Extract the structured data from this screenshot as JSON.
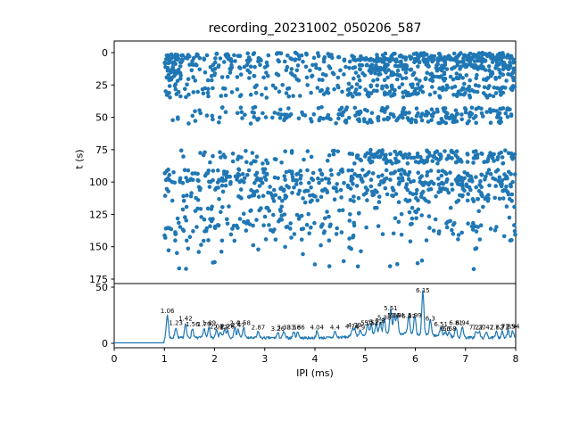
{
  "title": "recording_20231002_050206_587",
  "top_axes": {
    "ylabel": "t (s)",
    "yticks": [
      "0",
      "25",
      "50",
      "75",
      "100",
      "125",
      "150",
      "175"
    ],
    "ytick_values": [
      0,
      25,
      50,
      75,
      100,
      125,
      150,
      175
    ]
  },
  "bottom_axes": {
    "xlabel": "IPI (ms)",
    "xticks": [
      "0",
      "1",
      "2",
      "3",
      "4",
      "5",
      "6",
      "7",
      "8"
    ],
    "xtick_values": [
      0,
      1,
      2,
      3,
      4,
      5,
      6,
      7,
      8
    ],
    "yticks": [
      "0",
      "50"
    ],
    "ytick_values": [
      0,
      50
    ]
  },
  "colors": {
    "series": "#1f77b4",
    "spine": "#000000",
    "text": "#000000"
  },
  "chart_data": [
    {
      "type": "scatter",
      "title": "recording_20231002_050206_587",
      "ylabel": "t (s)",
      "xlim": [
        0,
        8
      ],
      "ylim": [
        183,
        -9
      ],
      "ylim_inverted": true,
      "marker_color": "#1f77b4",
      "marker_radius": 2.3,
      "seed": 42,
      "bands": [
        [
          0,
          8,
          1.0,
          4.8,
          90
        ],
        [
          0,
          8,
          4.8,
          8.0,
          200
        ],
        [
          0,
          22,
          1.0,
          1.35,
          55
        ],
        [
          9,
          14,
          1.35,
          4.8,
          45
        ],
        [
          9,
          14,
          4.8,
          8.0,
          110
        ],
        [
          15,
          22,
          1.35,
          4.8,
          40
        ],
        [
          15,
          22,
          4.8,
          8.0,
          85
        ],
        [
          24,
          35,
          1.0,
          4.8,
          70
        ],
        [
          24,
          35,
          4.8,
          8.0,
          120
        ],
        [
          42,
          55,
          1.0,
          4.8,
          80
        ],
        [
          42,
          55,
          4.8,
          8.0,
          150
        ],
        [
          75,
          86,
          1.0,
          4.8,
          45
        ],
        [
          75,
          86,
          4.8,
          8.0,
          140
        ],
        [
          90,
          101,
          1.0,
          8.0,
          230
        ],
        [
          101,
          116,
          1.0,
          4.8,
          95
        ],
        [
          101,
          116,
          4.8,
          8.0,
          120
        ],
        [
          118,
          146,
          1.0,
          4.8,
          130
        ],
        [
          118,
          146,
          4.8,
          8.0,
          65
        ],
        [
          148,
          158,
          1.0,
          8.0,
          16
        ],
        [
          160,
          168,
          1.2,
          7.5,
          13
        ]
      ]
    },
    {
      "type": "line",
      "xlabel": "IPI (ms)",
      "xlim": [
        0,
        8
      ],
      "ylim": [
        0,
        52
      ],
      "color": "#1f77b4",
      "seed": 7,
      "baseline": {
        "flat_until_x": 1.0,
        "flat_value": 0.4,
        "level": 3.5,
        "noise_amp": 2.5,
        "bump_center": 5.7,
        "bump_sigma": 0.6,
        "bump_amp": 4.0
      },
      "peaks": [
        {
          "x": 1.06,
          "y": 24,
          "label": "1.06"
        },
        {
          "x": 1.23,
          "y": 13,
          "label": "1.23"
        },
        {
          "x": 1.42,
          "y": 17,
          "label": "1.42"
        },
        {
          "x": 1.56,
          "y": 12,
          "label": "1.56"
        },
        {
          "x": 1.79,
          "y": 12,
          "label": "1.79"
        },
        {
          "x": 1.89,
          "y": 13,
          "label": "1.89"
        },
        {
          "x": 2.04,
          "y": 10,
          "label": "2.04"
        },
        {
          "x": 2.12,
          "y": 9,
          "label": "2.12"
        },
        {
          "x": 2.2,
          "y": 10,
          "label": "2.2"
        },
        {
          "x": 2.26,
          "y": 10,
          "label": "2.26"
        },
        {
          "x": 2.4,
          "y": 13,
          "label": "2.4"
        },
        {
          "x": 2.47,
          "y": 11,
          "label": "2.47"
        },
        {
          "x": 2.58,
          "y": 13,
          "label": "2.58"
        },
        {
          "x": 2.87,
          "y": 9,
          "label": "2.87"
        },
        {
          "x": 3.26,
          "y": 8,
          "label": "3.26"
        },
        {
          "x": 3.38,
          "y": 9,
          "label": "3.38"
        },
        {
          "x": 3.58,
          "y": 9,
          "label": "3.58"
        },
        {
          "x": 3.66,
          "y": 9,
          "label": "3.66"
        },
        {
          "x": 4.04,
          "y": 9,
          "label": "4.04"
        },
        {
          "x": 4.4,
          "y": 9,
          "label": "4.4"
        },
        {
          "x": 4.74,
          "y": 10,
          "label": "4.74"
        },
        {
          "x": 4.79,
          "y": 11,
          "label": "4.79"
        },
        {
          "x": 4.9,
          "y": 9,
          "label": "4.9"
        },
        {
          "x": 5.05,
          "y": 13,
          "label": "5.05"
        },
        {
          "x": 5.12,
          "y": 13,
          "label": "5.12"
        },
        {
          "x": 5.22,
          "y": 14,
          "label": "5.22"
        },
        {
          "x": 5.3,
          "y": 15,
          "label": "5.3"
        },
        {
          "x": 5.38,
          "y": 18,
          "label": "5.38"
        },
        {
          "x": 5.51,
          "y": 26,
          "label": "5.51"
        },
        {
          "x": 5.58,
          "y": 20,
          "label": "5.58"
        },
        {
          "x": 5.64,
          "y": 20,
          "label": "5.64"
        },
        {
          "x": 5.87,
          "y": 19,
          "label": "5.87"
        },
        {
          "x": 5.99,
          "y": 20,
          "label": "5.99"
        },
        {
          "x": 6.15,
          "y": 42,
          "label": "6.15"
        },
        {
          "x": 6.3,
          "y": 17,
          "label": "6.3"
        },
        {
          "x": 6.51,
          "y": 12,
          "label": "6.51"
        },
        {
          "x": 6.6,
          "y": 8,
          "label": "6.6"
        },
        {
          "x": 6.68,
          "y": 8,
          "label": "6.68"
        },
        {
          "x": 6.81,
          "y": 13,
          "label": "6.81"
        },
        {
          "x": 6.94,
          "y": 13,
          "label": "6.94"
        },
        {
          "x": 7.21,
          "y": 9,
          "label": "7.21"
        },
        {
          "x": 7.27,
          "y": 9,
          "label": "7.27"
        },
        {
          "x": 7.42,
          "y": 9,
          "label": "7.42"
        },
        {
          "x": 7.62,
          "y": 9,
          "label": "7.62"
        },
        {
          "x": 7.73,
          "y": 9,
          "label": "7.73"
        },
        {
          "x": 7.85,
          "y": 10,
          "label": "7.85"
        },
        {
          "x": 7.94,
          "y": 10,
          "label": "7.94"
        }
      ]
    }
  ]
}
